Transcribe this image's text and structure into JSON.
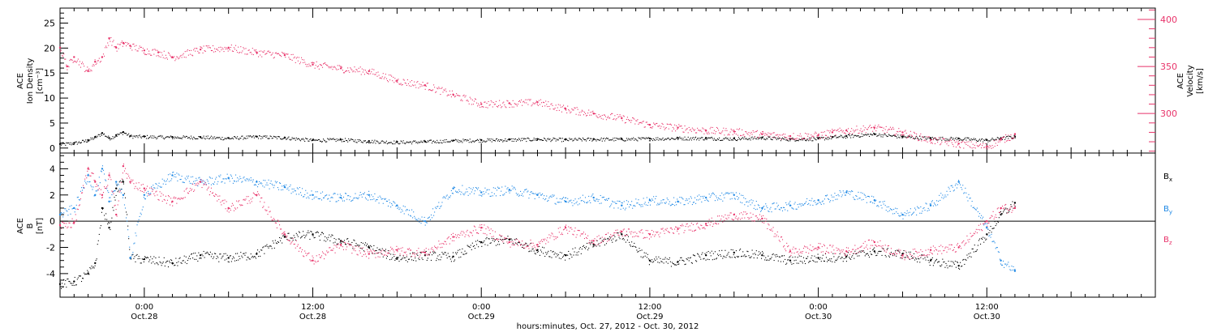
{
  "colors": {
    "black": "#000000",
    "pink": "#e8336a",
    "blue": "#1e88e5"
  },
  "x_axis": {
    "title": "hours:minutes, Oct. 27, 2012 - Oct. 30, 2012",
    "tick_labels": [
      {
        "hour": 24,
        "time": "0:00",
        "date": "Oct.28"
      },
      {
        "hour": 36,
        "time": "12:00",
        "date": "Oct.28"
      },
      {
        "hour": 48,
        "time": "0:00",
        "date": "Oct.29"
      },
      {
        "hour": 60,
        "time": "12:00",
        "date": "Oct.29"
      },
      {
        "hour": 72,
        "time": "0:00",
        "date": "Oct.30"
      },
      {
        "hour": 84,
        "time": "12:00",
        "date": "Oct.30"
      }
    ]
  },
  "chart_data": [
    {
      "type": "scatter",
      "panel": "top",
      "ylabel_left_lines": [
        "ACE",
        "Ion Density",
        "[cm⁻³]"
      ],
      "ylabel_right_lines": [
        "ACE",
        "Velocity",
        "[km/s]"
      ],
      "x_range_hours": [
        18,
        96
      ],
      "ylim_left": [
        -1,
        28
      ],
      "ylim_right": [
        258,
        412
      ],
      "left_ticks": [
        0,
        5,
        10,
        15,
        20,
        25
      ],
      "right_ticks": [
        300,
        350,
        400
      ],
      "grid": false,
      "series": [
        {
          "axis": "left",
          "color": "black",
          "x": [
            18,
            19,
            20,
            20.5,
            21,
            21.5,
            22,
            22.5,
            23,
            24,
            26,
            28,
            30,
            32,
            34,
            36,
            38,
            40,
            42,
            44,
            46,
            48,
            50,
            52,
            54,
            56,
            58,
            60,
            62,
            64,
            66,
            68,
            70,
            72,
            73,
            74,
            76,
            78,
            80,
            82,
            84,
            85,
            86
          ],
          "values": [
            0.8,
            1.0,
            1.6,
            2.2,
            3.0,
            2.0,
            2.6,
            3.2,
            2.4,
            2.3,
            2.2,
            2.2,
            2.0,
            2.3,
            2.1,
            1.6,
            1.7,
            1.4,
            1.2,
            1.3,
            1.5,
            1.6,
            1.7,
            1.8,
            1.7,
            1.8,
            1.8,
            1.9,
            2.0,
            2.0,
            1.9,
            2.1,
            1.8,
            1.9,
            2.2,
            2.4,
            2.8,
            2.3,
            2.0,
            1.9,
            1.6,
            2.0,
            2.3
          ]
        },
        {
          "axis": "right",
          "color": "pink",
          "x": [
            18,
            18.5,
            19,
            20,
            20.5,
            21,
            21.5,
            22,
            22.5,
            23,
            24,
            25,
            26,
            28,
            30,
            32,
            34,
            36,
            38,
            40,
            42,
            44,
            46,
            48,
            50,
            52,
            54,
            56,
            58,
            60,
            62,
            64,
            66,
            68,
            70,
            72,
            73,
            74,
            76,
            78,
            80,
            82,
            84,
            85,
            86
          ],
          "values": [
            370,
            350,
            360,
            345,
            355,
            360,
            380,
            370,
            375,
            372,
            367,
            365,
            360,
            368,
            370,
            365,
            362,
            352,
            348,
            345,
            335,
            330,
            320,
            310,
            311,
            312,
            305,
            300,
            295,
            288,
            285,
            282,
            281,
            278,
            276,
            277,
            280,
            282,
            285,
            280,
            272,
            268,
            265,
            272,
            278
          ]
        }
      ]
    },
    {
      "type": "scatter",
      "panel": "bottom",
      "ylabel_left_lines": [
        "ACE",
        "B",
        "[nT]"
      ],
      "x_range_hours": [
        18,
        96
      ],
      "ylim": [
        -5.8,
        5.2
      ],
      "ticks": [
        -4,
        -2,
        0,
        2,
        4
      ],
      "zero_line": true,
      "grid": false,
      "legend_placement": "right",
      "series": [
        {
          "name": "Bx",
          "color": "black",
          "x": [
            18,
            19,
            20,
            20.5,
            21,
            21.5,
            22,
            22.5,
            23,
            24,
            26,
            28,
            30,
            32,
            34,
            36,
            38,
            40,
            42,
            44,
            46,
            48,
            50,
            52,
            54,
            56,
            58,
            60,
            62,
            64,
            66,
            68,
            70,
            72,
            74,
            76,
            78,
            80,
            82,
            84,
            85,
            86
          ],
          "values": [
            -4.8,
            -4.6,
            -4.0,
            -3.2,
            1.0,
            -0.5,
            2.5,
            3.0,
            -2.8,
            -2.9,
            -3.2,
            -2.6,
            -2.8,
            -2.5,
            -1.2,
            -1.0,
            -1.5,
            -2.0,
            -2.8,
            -2.6,
            -2.7,
            -1.6,
            -1.4,
            -2.2,
            -2.6,
            -1.8,
            -1.0,
            -3.0,
            -3.1,
            -2.6,
            -2.4,
            -2.6,
            -3.0,
            -2.8,
            -2.7,
            -2.3,
            -2.5,
            -3.0,
            -3.4,
            -1.0,
            0.5,
            1.4
          ]
        },
        {
          "name": "By",
          "color": "blue",
          "x": [
            18,
            19,
            20,
            20.5,
            21,
            21.5,
            22,
            22.5,
            23,
            24,
            26,
            28,
            30,
            32,
            34,
            36,
            38,
            40,
            42,
            44,
            46,
            48,
            50,
            52,
            54,
            56,
            58,
            60,
            62,
            64,
            66,
            68,
            70,
            72,
            74,
            76,
            78,
            80,
            82,
            84,
            85,
            86
          ],
          "values": [
            0.5,
            1.0,
            3.5,
            2.0,
            4.0,
            1.5,
            3.0,
            2.0,
            -2.8,
            2.0,
            3.5,
            3.0,
            3.3,
            3.0,
            2.6,
            2.0,
            1.8,
            2.0,
            1.2,
            0.0,
            2.5,
            2.2,
            2.4,
            2.0,
            1.5,
            1.8,
            1.2,
            1.6,
            1.5,
            1.8,
            2.0,
            1.0,
            1.2,
            1.6,
            2.2,
            1.6,
            0.5,
            1.2,
            3.0,
            -0.5,
            -3.0,
            -3.8
          ]
        },
        {
          "name": "Bz",
          "color": "pink",
          "x": [
            18,
            19,
            20,
            20.5,
            21,
            21.5,
            22,
            22.5,
            23,
            24,
            26,
            28,
            30,
            32,
            34,
            36,
            38,
            40,
            42,
            44,
            46,
            48,
            50,
            52,
            54,
            56,
            58,
            60,
            62,
            64,
            66,
            68,
            70,
            72,
            74,
            76,
            78,
            80,
            82,
            84,
            85,
            86
          ],
          "values": [
            -0.3,
            -0.1,
            4.0,
            3.0,
            2.0,
            3.5,
            0.5,
            4.2,
            3.0,
            2.5,
            1.5,
            3.0,
            1.0,
            2.0,
            -1.0,
            -3.0,
            -1.8,
            -2.5,
            -2.2,
            -2.4,
            -1.2,
            -0.5,
            -1.6,
            -1.8,
            -0.5,
            -1.5,
            -0.8,
            -1.0,
            -0.6,
            -0.2,
            0.5,
            0.2,
            -2.3,
            -2.0,
            -2.3,
            -1.6,
            -2.6,
            -2.2,
            -2.0,
            0.0,
            1.0,
            1.0
          ]
        }
      ]
    }
  ]
}
